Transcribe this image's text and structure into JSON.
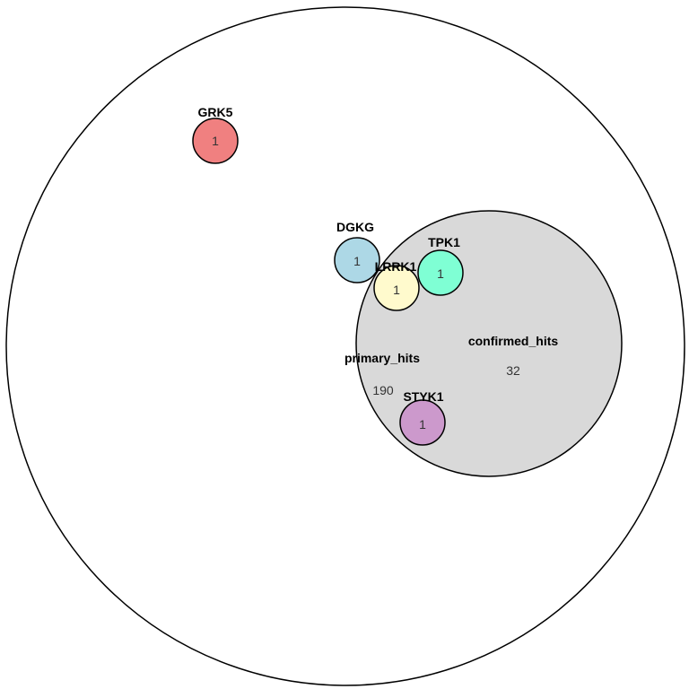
{
  "diagram": {
    "type": "euler",
    "sets": [
      {
        "id": "primary_hits",
        "label": "primary_hits",
        "count": "190",
        "fill": "#ffffff",
        "stroke": "#000000"
      },
      {
        "id": "confirmed_hits",
        "label": "confirmed_hits",
        "count": "32",
        "fill": "#d9d9d9",
        "stroke": "#000000"
      },
      {
        "id": "grk5",
        "label": "GRK5",
        "count": "1",
        "fill": "#f08080",
        "stroke": "#000000"
      },
      {
        "id": "dgkg",
        "label": "DGKG",
        "count": "1",
        "fill": "#add8e6",
        "stroke": "#000000"
      },
      {
        "id": "lrrk1",
        "label": "LRRK1",
        "count": "1",
        "fill": "#fffacd",
        "stroke": "#000000"
      },
      {
        "id": "tpk1",
        "label": "TPK1",
        "count": "1",
        "fill": "#7fffd4",
        "stroke": "#000000"
      },
      {
        "id": "styk1",
        "label": "STYK1",
        "count": "1",
        "fill": "#cc99cc",
        "stroke": "#000000"
      }
    ]
  }
}
